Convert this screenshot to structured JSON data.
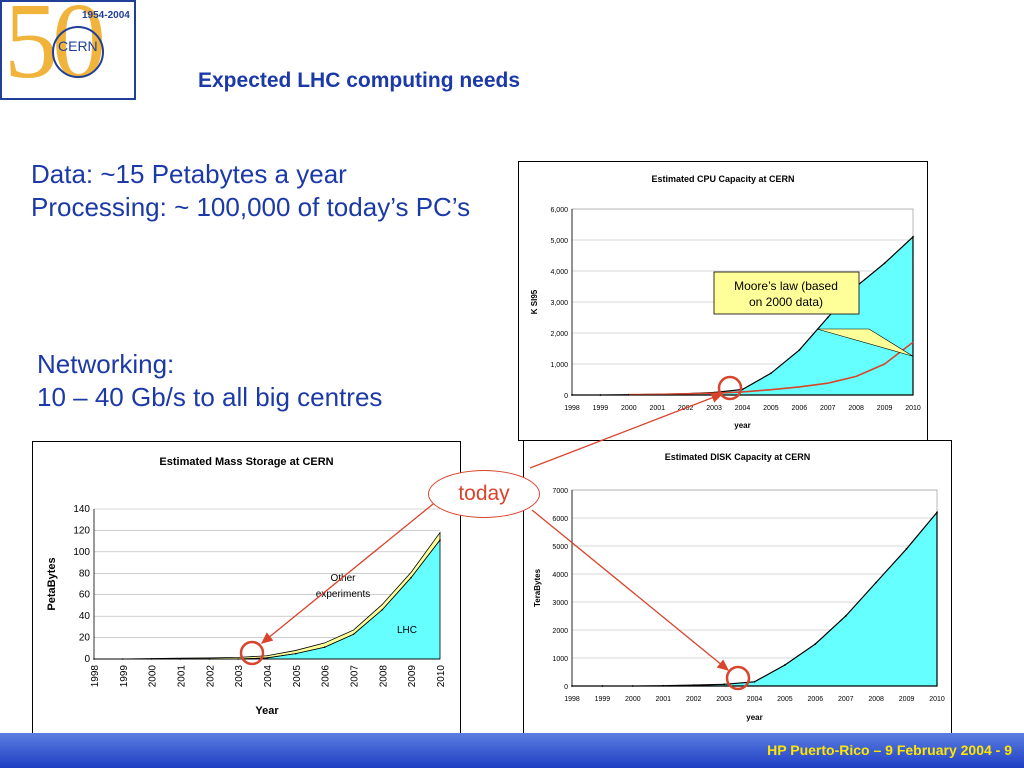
{
  "logo": {
    "numerals": "50",
    "years": "1954-2004",
    "org": "CERN"
  },
  "title": "Expected LHC computing needs",
  "text": {
    "line1": "Data: ~15 Petabytes a year",
    "line2": "Processing: ~ 100,000 of today’s PC’s",
    "line3": "Networking:",
    "line4": "10 – 40 Gb/s to all big centres"
  },
  "callout": "today",
  "footer": "HP Puerto-Rico – 9 February 2004  - 9",
  "colors": {
    "fill": "#66ffff",
    "accent": "#d9442c",
    "title": "#1c39a8"
  },
  "chart_data": [
    {
      "type": "area",
      "title": "Estimated CPU Capacity at CERN",
      "xlabel": "year",
      "ylabel": "K SI95",
      "x": [
        "1998",
        "1999",
        "2000",
        "2001",
        "2002",
        "2003",
        "2004",
        "2005",
        "2006",
        "2007",
        "2008",
        "2009",
        "2010"
      ],
      "ylim": [
        0,
        6000
      ],
      "yticks": [
        "0",
        "1,000",
        "2,000",
        "3,000",
        "4,000",
        "5,000",
        "6,000"
      ],
      "series": [
        {
          "values": [
            0,
            0,
            10,
            20,
            40,
            80,
            180,
            700,
            1450,
            2500,
            3500,
            4250,
            5100
          ]
        },
        {
          "values": [
            null,
            null,
            10,
            20,
            40,
            60,
            100,
            170,
            260,
            380,
            600,
            1000,
            1700
          ]
        }
      ],
      "annotation": "Moore’s law (based on 2000 data)"
    },
    {
      "type": "area",
      "title": "Estimated Mass Storage at CERN",
      "xlabel": "Year",
      "ylabel": "PetaBytes",
      "x": [
        "1998",
        "1999",
        "2000",
        "2001",
        "2002",
        "2003",
        "2004",
        "2005",
        "2006",
        "2007",
        "2008",
        "2009",
        "2010"
      ],
      "ylim": [
        0,
        140
      ],
      "yticks": [
        "0",
        "20",
        "40",
        "60",
        "80",
        "100",
        "120",
        "140"
      ],
      "series": [
        {
          "name": "LHC",
          "values": [
            0,
            0,
            0,
            0,
            0,
            0,
            1,
            5,
            11,
            23,
            46,
            76,
            111
          ]
        },
        {
          "name": "Other experiments",
          "values": [
            0,
            0,
            0.5,
            0.8,
            1,
            1.5,
            2,
            3,
            4,
            4,
            5,
            5,
            7
          ]
        }
      ],
      "labels": [
        "Other experiments",
        "LHC"
      ]
    },
    {
      "type": "area",
      "title": "Estimated DISK Capacity at CERN",
      "xlabel": "year",
      "ylabel": "TeraBytes",
      "x": [
        "1998",
        "1999",
        "2000",
        "2001",
        "2002",
        "2003",
        "2004",
        "2005",
        "2006",
        "2007",
        "2008",
        "2009",
        "2010"
      ],
      "ylim": [
        0,
        7000
      ],
      "yticks": [
        "0",
        "1000",
        "2000",
        "3000",
        "4000",
        "5000",
        "6000",
        "7000"
      ],
      "series": [
        {
          "values": [
            0,
            0,
            0,
            10,
            30,
            60,
            150,
            750,
            1500,
            2500,
            3700,
            4900,
            6200
          ]
        }
      ]
    }
  ]
}
